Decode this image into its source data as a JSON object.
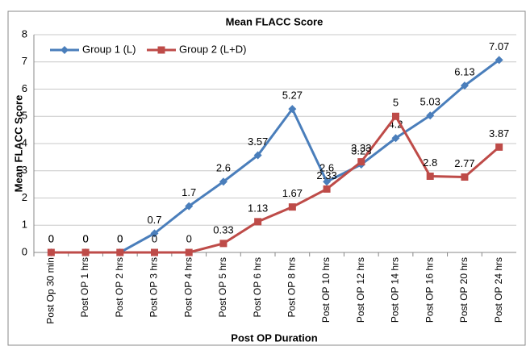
{
  "chart_data": {
    "type": "line",
    "title": "Mean FLACC Score",
    "x_label": "Post OP Duration",
    "y_label": "Mean FLACC Score",
    "categories": [
      "Post Op 30 min",
      "Post OP 1 hrs",
      "Post OP 2 hrs",
      "Post OP 3 hrs",
      "Post OP 4 hrs",
      "Post OP 5 hrs",
      "Post OP 6 hrs",
      "Post OP 8 hrs",
      "Post OP 10 hrs",
      "Post OP 12 hrs",
      "Post OP 14 hrs",
      "Post OP 16 hrs",
      "Post OP 20 hrs",
      "Post OP 24  hrs"
    ],
    "series": [
      {
        "name": "Group 1 (L)",
        "color": "#4a7ebb",
        "marker": "diamond",
        "values": [
          0,
          0,
          0,
          0.7,
          1.7,
          2.6,
          3.57,
          5.27,
          2.6,
          3.23,
          4.2,
          5.03,
          6.13,
          7.07
        ]
      },
      {
        "name": "Group 2 (L+D)",
        "color": "#be4b48",
        "marker": "square",
        "values": [
          0,
          0,
          0,
          0,
          0,
          0.33,
          1.13,
          1.67,
          2.33,
          3.33,
          5,
          2.8,
          2.77,
          3.87
        ]
      }
    ],
    "ylim": [
      0,
      8
    ],
    "yticks": [
      0,
      1,
      2,
      3,
      4,
      5,
      6,
      7,
      8
    ],
    "grid": true,
    "legend": "top-left"
  }
}
